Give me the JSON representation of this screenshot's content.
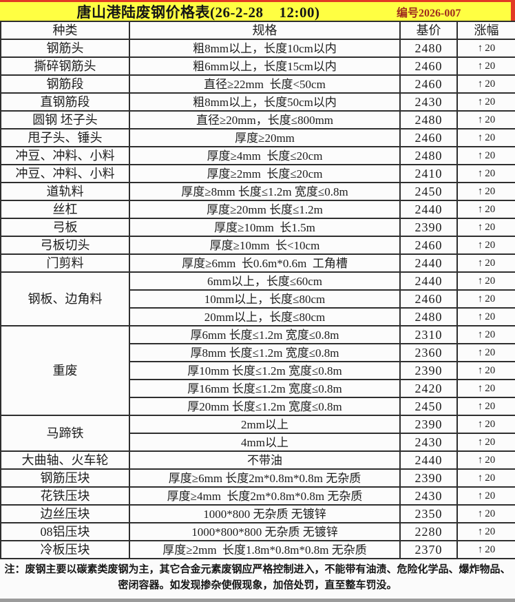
{
  "header": {
    "title": "唐山港陆废钢价格表(26-2-28    12:00)",
    "serial": "编号2026-007"
  },
  "table": {
    "columns": [
      "种类",
      "规格",
      "基价",
      "涨幅"
    ],
    "up_arrow": "↑",
    "rows": [
      {
        "kind": "钢筋头",
        "rowspan": 1,
        "spec": "粗8mm以上，长度10cm以内",
        "price": "2480",
        "change": "20"
      },
      {
        "kind": "撕碎钢筋头",
        "rowspan": 1,
        "spec": "粗6mm以上，长度15cm以内",
        "price": "2460",
        "change": "20"
      },
      {
        "kind": "钢筋段",
        "rowspan": 1,
        "spec": "直径≥22mm  长度<50cm",
        "price": "2460",
        "change": "20"
      },
      {
        "kind": "直钢筋段",
        "rowspan": 1,
        "spec": "粗8mm以上，长度50cm以内",
        "price": "2430",
        "change": "20"
      },
      {
        "kind": "圆钢 坯子头",
        "rowspan": 1,
        "spec": "直径≥20mm，长度≤800mm",
        "price": "2480",
        "change": "20"
      },
      {
        "kind": "甩子头、锤头",
        "rowspan": 1,
        "spec": "厚度≥20mm",
        "price": "2460",
        "change": "20"
      },
      {
        "kind": "冲豆、冲料、小料",
        "rowspan": 1,
        "spec": "厚度≥4mm  长度≤20cm",
        "price": "2480",
        "change": "20"
      },
      {
        "kind": "冲豆、冲料、小料",
        "rowspan": 1,
        "spec": "厚度≥2mm  长度≤20cm",
        "price": "2410",
        "change": "20"
      },
      {
        "kind": "道轨料",
        "rowspan": 1,
        "spec": "厚度≥8mm 长度≤1.2m 宽度≤0.8m",
        "price": "2450",
        "change": "20"
      },
      {
        "kind": "丝杠",
        "rowspan": 1,
        "spec": "厚度≥20mm 长度≤1.2m",
        "price": "2440",
        "change": "20"
      },
      {
        "kind": "弓板",
        "rowspan": 1,
        "spec": "厚度≥10mm  长1.5m",
        "price": "2390",
        "change": "20"
      },
      {
        "kind": "弓板切头",
        "rowspan": 1,
        "spec": "厚度≥10mm  长<10cm",
        "price": "2460",
        "change": "20"
      },
      {
        "kind": "门剪料",
        "rowspan": 1,
        "spec": "厚度≥6mm  长0.6m*0.6m  工角槽",
        "price": "2440",
        "change": "20"
      },
      {
        "kind": "钢板、边角料",
        "rowspan": 3,
        "spec": "6mm以上，长度≤60cm",
        "price": "2440",
        "change": "20"
      },
      {
        "spec": "10mm以上，长度≤80cm",
        "price": "2460",
        "change": "20"
      },
      {
        "spec": "20mm以上，长度≤80cm",
        "price": "2480",
        "change": "20"
      },
      {
        "kind": "重废",
        "rowspan": 5,
        "spec": "厚6mm 长度≤1.2m 宽度≤0.8m",
        "price": "2310",
        "change": "20"
      },
      {
        "spec": "厚8mm 长度≤1.2m 宽度≤0.8m",
        "price": "2360",
        "change": "20"
      },
      {
        "spec": "厚10mm 长度≤1.2m 宽度≤0.8m",
        "price": "2390",
        "change": "20"
      },
      {
        "spec": "厚16mm 长度≤1.2m 宽度≤0.8m",
        "price": "2420",
        "change": "20"
      },
      {
        "spec": "厚20mm 长度≤1.2m 宽度≤0.8m",
        "price": "2450",
        "change": "20"
      },
      {
        "kind": "马蹄铁",
        "rowspan": 2,
        "spec": "2mm以上",
        "price": "2390",
        "change": "20"
      },
      {
        "spec": "4mm以上",
        "price": "2430",
        "change": "20"
      },
      {
        "kind": "大曲轴、火车轮",
        "rowspan": 1,
        "spec": "不带油",
        "price": "2440",
        "change": "20"
      },
      {
        "kind": "钢筋压块",
        "rowspan": 1,
        "spec": "厚度≥6mm 长度2m*0.8m*0.8m 无杂质",
        "price": "2390",
        "change": "20"
      },
      {
        "kind": "花铁压块",
        "rowspan": 1,
        "spec": "厚度≥4mm  长度2m*0.8m*0.8m 无杂质",
        "price": "2430",
        "change": "20"
      },
      {
        "kind": "边丝压块",
        "rowspan": 1,
        "spec": "1000*800 无杂质 无镀锌",
        "price": "2350",
        "change": "20"
      },
      {
        "kind": "08铝压块",
        "rowspan": 1,
        "spec": "1000*800*800 无杂质 无镀锌",
        "price": "2280",
        "change": "20"
      },
      {
        "kind": "冷板压块",
        "rowspan": 1,
        "spec": "厚度≥2mm  长度1.8m*0.8m*0.8m 无杂质",
        "price": "2370",
        "change": "20"
      }
    ]
  },
  "note": "注：废钢主要以碳素类废钢为主，其它合金元素废钢应严格控制进入，不能带有油渍、危险化学品、爆炸物品、密闭容器。如发现掺杂使假现象，加倍处罚，直至整车罚没。",
  "colors": {
    "title_bg": "#ffff42",
    "serial_text": "#9e2a1e",
    "accent_red": "#e23a25",
    "border": "#2e2e2e",
    "text": "#1d1d1d"
  }
}
